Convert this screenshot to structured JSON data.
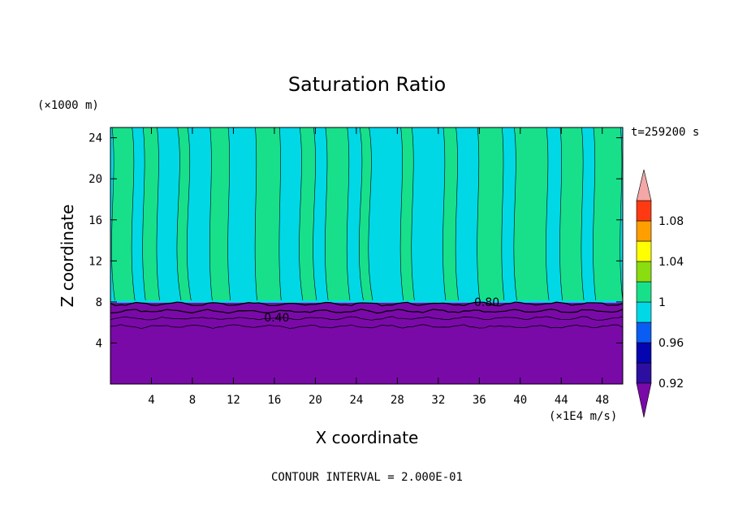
{
  "chart_data": {
    "type": "heatmap",
    "title": "Saturation Ratio",
    "xlabel": "X coordinate",
    "ylabel": "Z coordinate",
    "x_unit": "(×1E4 m/s)",
    "y_unit": "(×1000 m)",
    "time_label": "t=259200 s",
    "footer": "CONTOUR INTERVAL = 2.000E-01",
    "xlim": [
      0,
      50
    ],
    "ylim": [
      0,
      25
    ],
    "x_ticks": [
      "4",
      "8",
      "12",
      "16",
      "20",
      "24",
      "28",
      "32",
      "36",
      "40",
      "44",
      "48"
    ],
    "y_ticks": [
      "4",
      "8",
      "12",
      "16",
      "20",
      "24"
    ],
    "inversion_height": 8,
    "contour_labels": [
      {
        "text": "0.40",
        "x": 15.0,
        "z": 6.5
      },
      {
        "text": "0.80",
        "x": 35.5,
        "z": 8.0
      }
    ],
    "fields": {
      "lower_level_value": 0.88,
      "upper_level_alternating": [
        1.0,
        0.98
      ]
    },
    "colorbar": {
      "labels": [
        "1.08",
        "1.04",
        "1",
        "0.96",
        "0.92"
      ],
      "levels": [
        0.92,
        0.94,
        0.96,
        0.98,
        1.0,
        1.02,
        1.04,
        1.06,
        1.08,
        1.1
      ],
      "colors": [
        "#7a0aa8",
        "#2c0fa0",
        "#0505b0",
        "#0a5df2",
        "#00d8e6",
        "#18e08a",
        "#8add0e",
        "#ffff00",
        "#ff9e00",
        "#ff3a12",
        "#f4a7a7"
      ],
      "extend": "both"
    },
    "grid": false,
    "legend": "none"
  }
}
